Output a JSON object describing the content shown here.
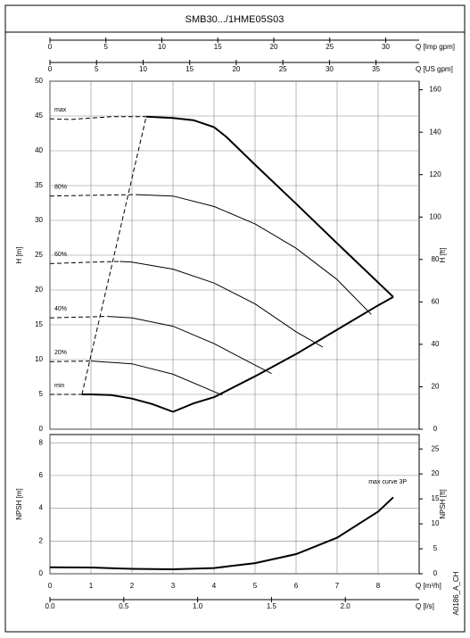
{
  "title": "SMB30.../1HME05S03",
  "code": "A0186_A_CH",
  "chart_data": [
    {
      "type": "line",
      "ylabel": "H [m]",
      "y2label": "H [ft]",
      "xlim": [
        0,
        9
      ],
      "xticks": [
        0,
        1,
        2,
        3,
        4,
        5,
        6,
        7,
        8
      ],
      "ylim": [
        0,
        50
      ],
      "yticks": [
        0,
        5,
        10,
        15,
        20,
        25,
        30,
        35,
        40,
        45,
        50
      ],
      "y2lim": [
        0,
        164.04
      ],
      "y2ticks": [
        0,
        20,
        40,
        60,
        80,
        100,
        120,
        140,
        160
      ],
      "x2": {
        "label": "Q [Imp gpm]",
        "lim": [
          0,
          32.99
        ],
        "ticks": [
          0,
          5,
          10,
          15,
          20,
          25,
          30
        ]
      },
      "x3": {
        "label": "Q [US gpm]",
        "lim": [
          0,
          39.63
        ],
        "ticks": [
          0,
          5,
          10,
          15,
          20,
          25,
          30,
          35
        ]
      },
      "grid": true,
      "series": [
        {
          "name": "max",
          "name_position": "start",
          "style": "dashed",
          "color": "#000000",
          "x": [
            0,
            0.5,
            1,
            1.5,
            2.35
          ],
          "values": [
            44.6,
            44.5,
            44.7,
            44.9,
            44.9
          ]
        },
        {
          "style": "solid",
          "bold": true,
          "color": "#000000",
          "x": [
            2.35,
            3,
            3.5,
            4,
            4.3,
            5,
            6,
            7,
            8.37
          ],
          "values": [
            44.9,
            44.7,
            44.4,
            43.4,
            42,
            38,
            32.4,
            26.7,
            19
          ]
        },
        {
          "name": "80%",
          "name_position": "start",
          "style": "dashed",
          "color": "#000000",
          "x": [
            0,
            1,
            2.1
          ],
          "values": [
            33.5,
            33.6,
            33.7
          ]
        },
        {
          "style": "solid",
          "color": "#000000",
          "x": [
            2.1,
            3,
            4,
            5,
            6,
            7,
            7.83
          ],
          "values": [
            33.7,
            33.5,
            32,
            29.5,
            26,
            21.5,
            16.5
          ]
        },
        {
          "name": "60%",
          "name_position": "start",
          "style": "dashed",
          "color": "#000000",
          "x": [
            0,
            1,
            1.7
          ],
          "values": [
            23.8,
            24,
            24.1
          ]
        },
        {
          "style": "solid",
          "color": "#000000",
          "x": [
            1.7,
            2,
            3,
            4,
            5,
            6,
            6.65
          ],
          "values": [
            24.1,
            24,
            23,
            21,
            18,
            14,
            11.8
          ]
        },
        {
          "name": "40%",
          "name_position": "start",
          "style": "dashed",
          "color": "#000000",
          "x": [
            0,
            0.7,
            1.4
          ],
          "values": [
            16,
            16.1,
            16.2
          ]
        },
        {
          "style": "solid",
          "color": "#000000",
          "x": [
            1.4,
            2,
            3,
            4,
            5,
            5.4
          ],
          "values": [
            16.2,
            16,
            14.8,
            12.3,
            9.2,
            8
          ]
        },
        {
          "name": "20%",
          "name_position": "start",
          "style": "dashed",
          "color": "#000000",
          "x": [
            0,
            1
          ],
          "values": [
            9.7,
            9.8
          ]
        },
        {
          "style": "solid",
          "color": "#000000",
          "x": [
            1,
            2,
            3,
            4.2
          ],
          "values": [
            9.8,
            9.4,
            7.9,
            4.9
          ]
        },
        {
          "name": "min",
          "name_position": "start",
          "style": "dashed",
          "color": "#000000",
          "x": [
            0,
            0.78
          ],
          "values": [
            5,
            5
          ]
        },
        {
          "style": "solid",
          "bold": true,
          "color": "#000000",
          "x": [
            0.78,
            1,
            1.5,
            2,
            2.5,
            3
          ],
          "values": [
            5,
            5,
            4.9,
            4.4,
            3.6,
            2.5
          ]
        },
        {
          "style": "solid",
          "bold": true,
          "color": "#000000",
          "x": [
            3,
            3.5,
            4,
            5,
            6,
            7,
            8,
            8.37
          ],
          "values": [
            2.5,
            3.7,
            4.6,
            7.6,
            10.8,
            14.3,
            17.8,
            19
          ]
        },
        {
          "style": "dashed",
          "color": "#000000",
          "x": [
            0.78,
            2.35
          ],
          "values": [
            5,
            45
          ]
        }
      ]
    },
    {
      "type": "line",
      "ylabel": "NPSH [m]",
      "y2label": "NPSH [ft]",
      "xlabel": "Q [m³/h]",
      "xlim": [
        0,
        9
      ],
      "xticks": [
        0,
        1,
        2,
        3,
        4,
        5,
        6,
        7,
        8
      ],
      "ylim": [
        0,
        8.5
      ],
      "yticks": [
        0,
        2,
        4,
        6,
        8
      ],
      "y2lim": [
        0,
        27.89
      ],
      "y2ticks": [
        0,
        5,
        10,
        15,
        20,
        25
      ],
      "x2": {
        "label": "Q [l/s]",
        "lim": [
          0,
          2.5
        ],
        "ticks": [
          {
            "value": 0,
            "label": "0.0"
          },
          {
            "value": 0.5,
            "label": "0.5"
          },
          {
            "value": 1,
            "label": "1.0"
          },
          {
            "value": 1.5,
            "label": "1.5"
          },
          {
            "value": 2,
            "label": "2.0"
          }
        ]
      },
      "grid": true,
      "series": [
        {
          "name": "max curve 3P",
          "name_position": "end",
          "style": "solid",
          "bold": true,
          "color": "#000000",
          "x": [
            0,
            1,
            2,
            3,
            4,
            5,
            6,
            7,
            8,
            8.37
          ],
          "values": [
            0.4,
            0.38,
            0.3,
            0.27,
            0.35,
            0.65,
            1.2,
            2.2,
            3.8,
            4.67
          ]
        }
      ]
    }
  ]
}
